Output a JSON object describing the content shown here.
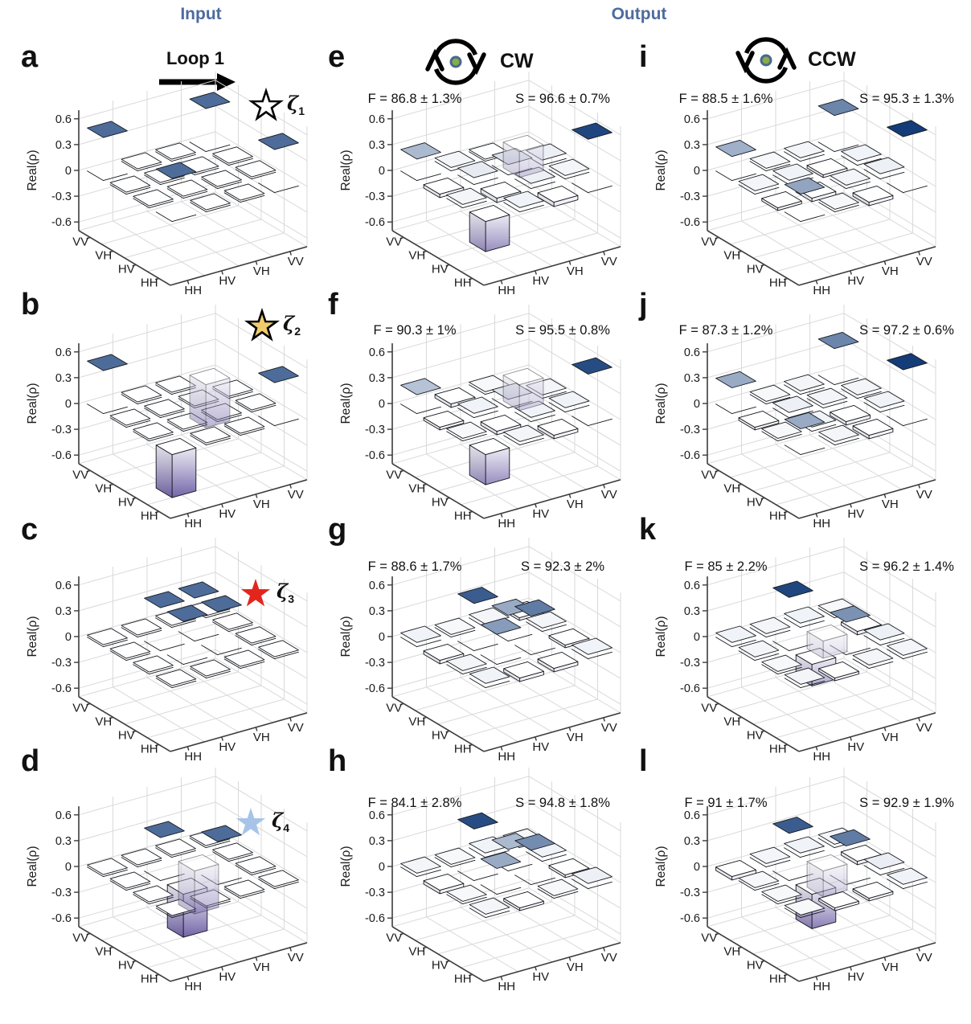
{
  "figure": {
    "input_header": "Input",
    "output_header": "Output",
    "loop_label": "Loop 1",
    "cw_label": "CW",
    "ccw_label": "CCW"
  },
  "axis": {
    "z_label": "Real(ρ)",
    "z_ticks": [
      "0.6",
      "0.3",
      "0",
      "-0.3",
      "-0.6"
    ],
    "z_tick_values": [
      0.6,
      0.3,
      0,
      -0.3,
      -0.6
    ],
    "z_range": [
      -0.7,
      0.7
    ],
    "left_axis_labels_front_to_back": [
      "HH",
      "HV",
      "VH",
      "VV"
    ],
    "right_axis_labels_front_to_back": [
      "HH",
      "HV",
      "VH",
      "VV"
    ]
  },
  "colors": {
    "positive_bar_top": "#143c78",
    "negative_bar_bottom": "#4f3e92",
    "bar_edge": "#15181d",
    "grid_line": "#d9d9d9",
    "axis_line": "#3c3c3c",
    "header_text": "#4d6b9e",
    "loop_dot_fill": "#87ac4b",
    "loop_dot_ring": "#49688f",
    "star_open_fill": "#ffffff",
    "star_gold_fill": "#f0cc6d",
    "star_red_fill": "#e3261d",
    "star_blue_fill": "#a7c4e8"
  },
  "chart_data": {
    "type": "bar",
    "subtype": "3d-density-matrix-tomography",
    "note": "Twelve 3D bar charts of Real(rho) over a 4x4 polarization basis grid. values[u][v]: u = cell steps from front corner along left axis (labels HH,HV,VH,VV), v = steps along right axis (labels HH,HV,VH,VV). ghost_cells are rendered semi-transparent (bars occluded below the z=0 plane).",
    "zlim": [
      -0.7,
      0.7
    ],
    "basis": [
      "HH",
      "HV",
      "VH",
      "VV"
    ],
    "panels": [
      {
        "id": "a",
        "kind": "input",
        "letter": "a",
        "star": {
          "fill": "#ffffff",
          "stroke": "#000000",
          "zeta_sub": "1"
        },
        "values": [
          [
            0.5,
            0,
            0,
            0.5
          ],
          [
            0,
            0,
            0,
            0
          ],
          [
            0,
            0,
            0,
            0
          ],
          [
            0.5,
            0,
            0,
            0.5
          ]
        ],
        "ghost_cells": []
      },
      {
        "id": "e",
        "kind": "output",
        "letter": "e",
        "fidelity": "F = 86.8 ± 1.3%",
        "similarity": "S = 96.6 ± 0.7%",
        "values": [
          [
            -0.35,
            0.05,
            -0.05,
            0.62
          ],
          [
            0.04,
            -0.05,
            0.06,
            0.04
          ],
          [
            -0.04,
            0.08,
            0.12,
            0.06
          ],
          [
            0.25,
            0.04,
            0,
            -0.3
          ]
        ],
        "ghost_cells": [
          [
            3,
            3
          ]
        ]
      },
      {
        "id": "i",
        "kind": "output",
        "letter": "i",
        "fidelity": "F = 88.5 ± 1.6%",
        "similarity": "S = 95.3 ± 1.3%",
        "values": [
          [
            0.32,
            0.03,
            -0.04,
            0.65
          ],
          [
            -0.03,
            -0.04,
            0.04,
            0.06
          ],
          [
            0.04,
            0.05,
            -0.03,
            0.05
          ],
          [
            0.28,
            0.03,
            0.04,
            0.42
          ]
        ],
        "ghost_cells": []
      },
      {
        "id": "b",
        "kind": "input",
        "letter": "b",
        "star": {
          "fill": "#f0cc6d",
          "stroke": "#000000",
          "zeta_sub": "2"
        },
        "values": [
          [
            -0.5,
            0,
            0,
            0.5
          ],
          [
            0,
            0,
            0,
            0
          ],
          [
            0,
            0,
            0,
            0
          ],
          [
            0.5,
            0,
            0,
            -0.5
          ]
        ],
        "ghost_cells": [
          [
            3,
            3
          ]
        ]
      },
      {
        "id": "f",
        "kind": "output",
        "letter": "f",
        "fidelity": "F = 90.3 ± 1%",
        "similarity": "S = 95.5 ± 0.8%",
        "values": [
          [
            -0.35,
            0.04,
            -0.04,
            0.6
          ],
          [
            0.03,
            -0.04,
            0.05,
            0.05
          ],
          [
            -0.03,
            0.05,
            0.1,
            0.04
          ],
          [
            0.22,
            -0.04,
            0.03,
            -0.3
          ]
        ],
        "ghost_cells": [
          [
            3,
            3
          ]
        ]
      },
      {
        "id": "j",
        "kind": "output",
        "letter": "j",
        "fidelity": "F = 87.3 ± 1.2%",
        "similarity": "S = 97.2 ± 0.6%",
        "values": [
          [
            0.3,
            0.04,
            -0.04,
            0.65
          ],
          [
            0.03,
            0.05,
            -0.04,
            0.05
          ],
          [
            -0.03,
            0.06,
            0.04,
            0.04
          ],
          [
            0.3,
            0.03,
            0.04,
            0.42
          ]
        ],
        "ghost_cells": []
      },
      {
        "id": "c",
        "kind": "input",
        "letter": "c",
        "star": {
          "fill": "#e3261d",
          "stroke": "none",
          "zeta_sub": "3"
        },
        "values": [
          [
            0,
            0,
            0,
            0
          ],
          [
            0,
            0.5,
            0.5,
            0
          ],
          [
            0,
            0.5,
            0.5,
            0
          ],
          [
            0,
            0,
            0,
            0
          ]
        ],
        "ghost_cells": []
      },
      {
        "id": "g",
        "kind": "output",
        "letter": "g",
        "fidelity": "F = 88.6 ± 1.7%",
        "similarity": "S = 92.3 ± 2%",
        "values": [
          [
            0.05,
            -0.04,
            -0.04,
            0.05
          ],
          [
            0.04,
            0.35,
            0.45,
            -0.03
          ],
          [
            -0.04,
            0.55,
            0.3,
            0.04
          ],
          [
            0.05,
            0.03,
            0.04,
            -0.03
          ]
        ],
        "ghost_cells": []
      },
      {
        "id": "k",
        "kind": "output",
        "letter": "k",
        "fidelity": "F = 85 ± 2.2%",
        "similarity": "S = 96.2 ± 1.4%",
        "values": [
          [
            0.04,
            -0.03,
            0.04,
            0.04
          ],
          [
            0.03,
            -0.25,
            0.38,
            0.06
          ],
          [
            0.04,
            0.62,
            -0.2,
            -0.04
          ],
          [
            0.05,
            0.04,
            0.05,
            0.03
          ]
        ],
        "ghost_cells": [
          [
            2,
            2
          ]
        ]
      },
      {
        "id": "d",
        "kind": "input",
        "letter": "d",
        "star": {
          "fill": "#a7c4e8",
          "stroke": "none",
          "zeta_sub": "4"
        },
        "values": [
          [
            0,
            0,
            0,
            0
          ],
          [
            0,
            -0.5,
            0.5,
            0
          ],
          [
            0,
            0.5,
            -0.5,
            0
          ],
          [
            0,
            0,
            0,
            0
          ]
        ],
        "ghost_cells": [
          [
            2,
            2
          ]
        ]
      },
      {
        "id": "h",
        "kind": "output",
        "letter": "h",
        "fidelity": "F = 84.1 ± 2.8%",
        "similarity": "S = 94.8 ± 1.8%",
        "values": [
          [
            0.04,
            -0.03,
            0.03,
            0.06
          ],
          [
            0.03,
            0.3,
            0.4,
            -0.03
          ],
          [
            -0.04,
            0.6,
            0.25,
            0.05
          ],
          [
            0.04,
            0.03,
            0.05,
            0.03
          ]
        ],
        "ghost_cells": []
      },
      {
        "id": "l",
        "kind": "output",
        "letter": "l",
        "fidelity": "F = 91 ± 1.7%",
        "similarity": "S = 92.9 ± 1.9%",
        "values": [
          [
            0.03,
            -0.03,
            -0.03,
            0.05
          ],
          [
            0.03,
            -0.4,
            0.45,
            0.07
          ],
          [
            0.03,
            0.55,
            -0.3,
            -0.04
          ],
          [
            -0.04,
            0.04,
            0.05,
            0.04
          ]
        ],
        "ghost_cells": [
          [
            2,
            2
          ]
        ]
      }
    ]
  }
}
